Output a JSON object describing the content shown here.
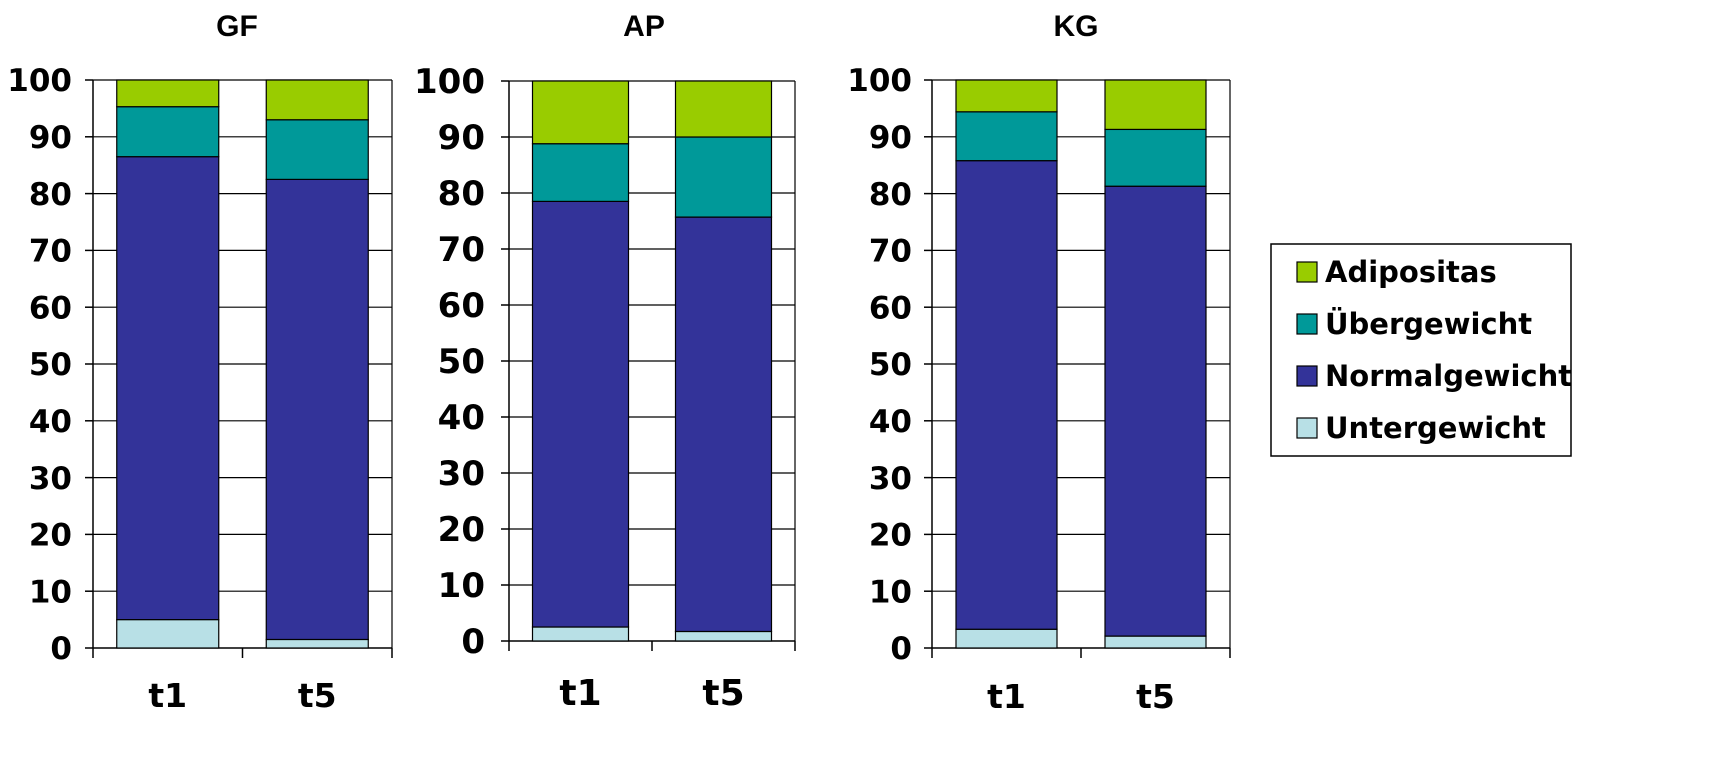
{
  "chart_data": [
    {
      "type": "bar",
      "stacked": true,
      "title": "GF",
      "categories": [
        "t1",
        "t5"
      ],
      "ylim": [
        0,
        100
      ],
      "yticks": [
        "0",
        "10",
        "20",
        "30",
        "40",
        "50",
        "60",
        "70",
        "80",
        "90",
        "100"
      ],
      "series": [
        {
          "name": "Untergewicht",
          "values": [
            5,
            1.5
          ]
        },
        {
          "name": "Normalgewicht",
          "values": [
            81.5,
            81
          ]
        },
        {
          "name": "Übergewicht",
          "values": [
            8.8,
            10.5
          ]
        },
        {
          "name": "Adipositas",
          "values": [
            4.7,
            7
          ]
        }
      ]
    },
    {
      "type": "bar",
      "stacked": true,
      "title": "AP",
      "categories": [
        "t1",
        "t5"
      ],
      "ylim": [
        0,
        100
      ],
      "yticks": [
        "0",
        "10",
        "20",
        "30",
        "40",
        "50",
        "60",
        "70",
        "80",
        "90",
        "100"
      ],
      "series": [
        {
          "name": "Untergewicht",
          "values": [
            2.5,
            1.7
          ]
        },
        {
          "name": "Normalgewicht",
          "values": [
            76,
            74
          ]
        },
        {
          "name": "Übergewicht",
          "values": [
            10.3,
            14.3
          ]
        },
        {
          "name": "Adipositas",
          "values": [
            11.2,
            10
          ]
        }
      ]
    },
    {
      "type": "bar",
      "stacked": true,
      "title": "KG",
      "categories": [
        "t1",
        "t5"
      ],
      "ylim": [
        0,
        100
      ],
      "yticks": [
        "0",
        "10",
        "20",
        "30",
        "40",
        "50",
        "60",
        "70",
        "80",
        "90",
        "100"
      ],
      "series": [
        {
          "name": "Untergewicht",
          "values": [
            3.3,
            2.1
          ]
        },
        {
          "name": "Normalgewicht",
          "values": [
            82.5,
            79.2
          ]
        },
        {
          "name": "Übergewicht",
          "values": [
            8.6,
            10
          ]
        },
        {
          "name": "Adipositas",
          "values": [
            5.6,
            8.7
          ]
        }
      ]
    }
  ],
  "colors": {
    "Adipositas": "#99cc00",
    "Übergewicht": "#009999",
    "Normalgewicht": "#333399",
    "Untergewicht": "#b8e0e6"
  },
  "legend": {
    "position": "right",
    "items": [
      "Adipositas",
      "Übergewicht",
      "Normalgewicht",
      "Untergewicht"
    ]
  },
  "grid": true
}
